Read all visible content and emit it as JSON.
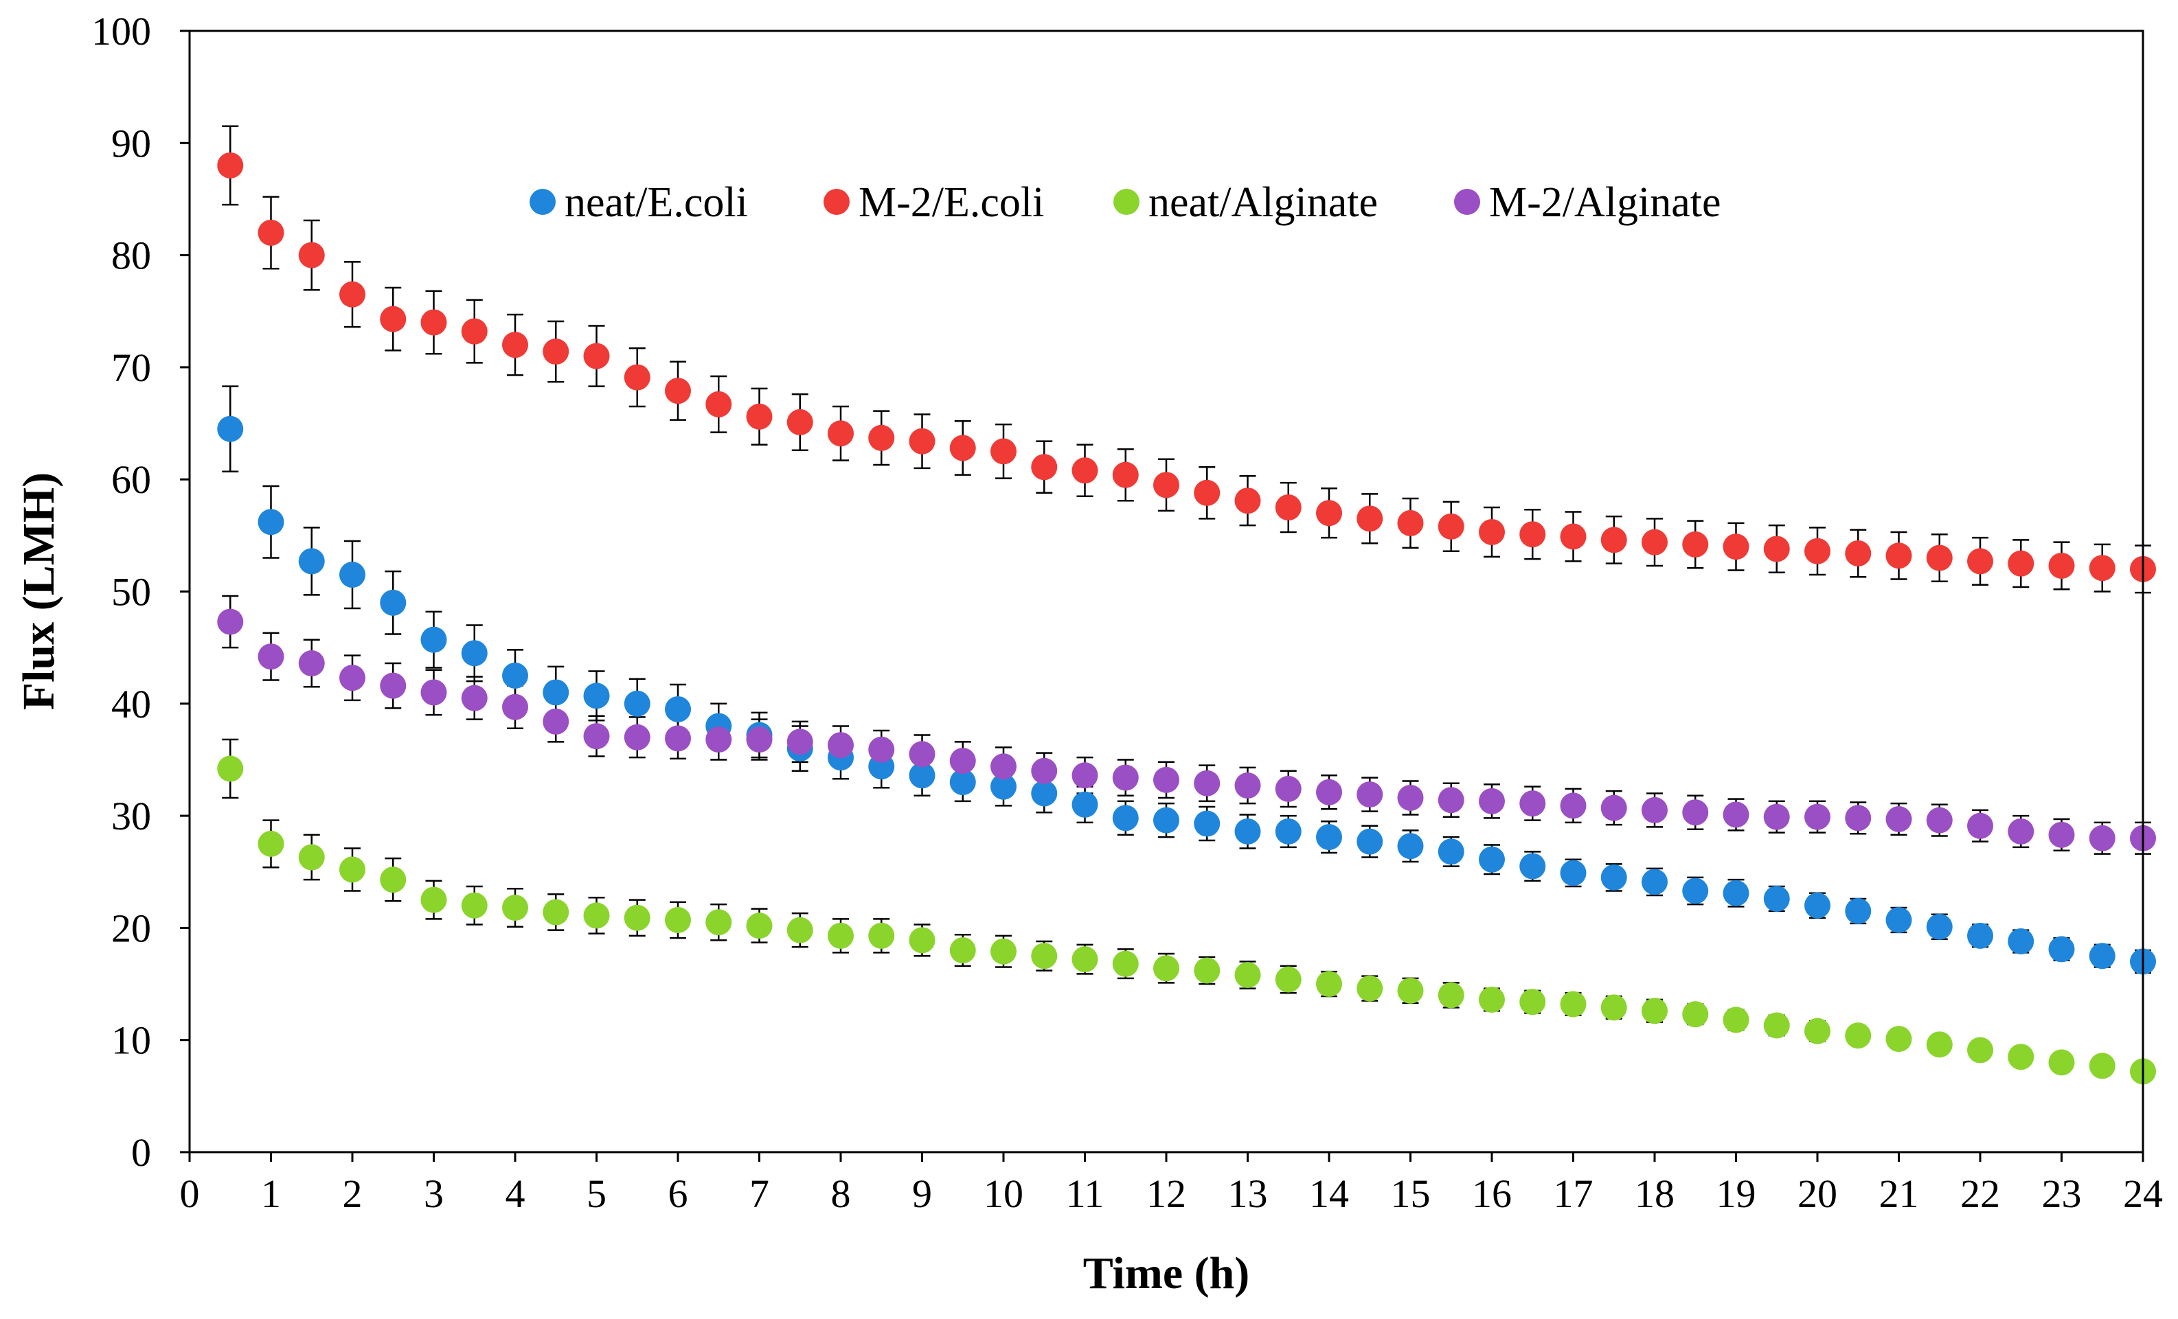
{
  "chart_data": {
    "type": "scatter",
    "title": "",
    "xlabel": "Time (h)",
    "ylabel": "Flux (LMH)",
    "xlim": [
      0,
      24
    ],
    "ylim": [
      0,
      100
    ],
    "x_ticks": [
      "0",
      "1",
      "2",
      "3",
      "4",
      "5",
      "6",
      "7",
      "8",
      "9",
      "10",
      "11",
      "12",
      "13",
      "14",
      "15",
      "16",
      "17",
      "18",
      "19",
      "20",
      "21",
      "22",
      "23",
      "24"
    ],
    "y_ticks": [
      "0",
      "10",
      "20",
      "30",
      "40",
      "50",
      "60",
      "70",
      "80",
      "90",
      "100"
    ],
    "grid": false,
    "legend_position": "top-center",
    "x": [
      0.5,
      1,
      1.5,
      2,
      2.5,
      3,
      3.5,
      4,
      4.5,
      5,
      5.5,
      6,
      6.5,
      7,
      7.5,
      8,
      8.5,
      9,
      9.5,
      10,
      10.5,
      11,
      11.5,
      12,
      12.5,
      13,
      13.5,
      14,
      14.5,
      15,
      15.5,
      16,
      16.5,
      17,
      17.5,
      18,
      18.5,
      19,
      19.5,
      20,
      20.5,
      21,
      21.5,
      22,
      22.5,
      23,
      23.5,
      24
    ],
    "series": [
      {
        "name": "neat/E.coli",
        "color": "#1f86dc",
        "values": [
          64.5,
          56.2,
          52.7,
          51.5,
          49.0,
          45.7,
          44.5,
          42.5,
          41.0,
          40.7,
          40.0,
          39.5,
          38.0,
          37.2,
          36.0,
          35.2,
          34.4,
          33.6,
          33.0,
          32.6,
          32.0,
          31.0,
          29.8,
          29.6,
          29.3,
          28.6,
          28.6,
          28.1,
          27.7,
          27.3,
          26.8,
          26.1,
          25.5,
          24.9,
          24.5,
          24.1,
          23.3,
          23.1,
          22.6,
          22.0,
          21.5,
          20.7,
          20.1,
          19.3,
          18.8,
          18.1,
          17.5,
          17.0
        ],
        "errors": [
          3.8,
          3.2,
          3.0,
          3.0,
          2.8,
          2.5,
          2.5,
          2.3,
          2.3,
          2.2,
          2.2,
          2.2,
          2.0,
          2.0,
          2.0,
          1.9,
          1.9,
          1.8,
          1.7,
          1.7,
          1.7,
          1.6,
          1.5,
          1.5,
          1.5,
          1.5,
          1.4,
          1.4,
          1.4,
          1.4,
          1.3,
          1.3,
          1.3,
          1.2,
          1.2,
          1.2,
          1.2,
          1.2,
          1.1,
          1.1,
          1.1,
          1.1,
          1.1,
          1.0,
          1.0,
          1.0,
          1.0,
          1.0
        ]
      },
      {
        "name": "M-2/E.coli",
        "color": "#ef3a36",
        "values": [
          88.0,
          82.0,
          80.0,
          76.5,
          74.3,
          74.0,
          73.2,
          72.0,
          71.4,
          71.0,
          69.1,
          67.9,
          66.7,
          65.6,
          65.1,
          64.1,
          63.7,
          63.4,
          62.8,
          62.5,
          61.1,
          60.8,
          60.4,
          59.5,
          58.8,
          58.1,
          57.5,
          57.0,
          56.5,
          56.1,
          55.8,
          55.3,
          55.1,
          54.9,
          54.6,
          54.4,
          54.2,
          54.0,
          53.8,
          53.6,
          53.4,
          53.2,
          53.0,
          52.7,
          52.5,
          52.3,
          52.1,
          52.0
        ],
        "errors": [
          3.5,
          3.2,
          3.1,
          2.9,
          2.8,
          2.8,
          2.8,
          2.7,
          2.7,
          2.7,
          2.6,
          2.6,
          2.5,
          2.5,
          2.5,
          2.4,
          2.4,
          2.4,
          2.4,
          2.4,
          2.3,
          2.3,
          2.3,
          2.3,
          2.3,
          2.2,
          2.2,
          2.2,
          2.2,
          2.2,
          2.2,
          2.2,
          2.2,
          2.2,
          2.1,
          2.1,
          2.1,
          2.1,
          2.1,
          2.1,
          2.1,
          2.1,
          2.1,
          2.1,
          2.1,
          2.1,
          2.1,
          2.1
        ]
      },
      {
        "name": "neat/Alginate",
        "color": "#8ad42c",
        "values": [
          34.2,
          27.5,
          26.3,
          25.2,
          24.3,
          22.5,
          22.0,
          21.8,
          21.4,
          21.1,
          20.9,
          20.7,
          20.5,
          20.2,
          19.8,
          19.3,
          19.3,
          18.9,
          18.0,
          17.9,
          17.5,
          17.2,
          16.8,
          16.4,
          16.2,
          15.8,
          15.4,
          15.0,
          14.6,
          14.4,
          14.0,
          13.6,
          13.4,
          13.2,
          12.9,
          12.6,
          12.3,
          11.8,
          11.3,
          10.8,
          10.4,
          10.1,
          9.6,
          9.1,
          8.5,
          8.0,
          7.7,
          7.2
        ],
        "errors": [
          2.6,
          2.1,
          2.0,
          1.9,
          1.9,
          1.7,
          1.7,
          1.7,
          1.6,
          1.6,
          1.6,
          1.6,
          1.6,
          1.5,
          1.5,
          1.5,
          1.5,
          1.4,
          1.4,
          1.4,
          1.3,
          1.3,
          1.3,
          1.3,
          1.2,
          1.2,
          1.2,
          1.1,
          1.1,
          1.1,
          1.1,
          1.0,
          1.0,
          1.0,
          1.0,
          1.0,
          0.9,
          0.9,
          0.9,
          0.9,
          0.8,
          0.8,
          0.8,
          0.8,
          0.7,
          0.7,
          0.7,
          0.7
        ]
      },
      {
        "name": "M-2/Alginate",
        "color": "#9b4fc4",
        "values": [
          47.3,
          44.2,
          43.6,
          42.3,
          41.6,
          41.0,
          40.5,
          39.7,
          38.4,
          37.1,
          37.0,
          36.9,
          36.8,
          36.8,
          36.6,
          36.3,
          35.9,
          35.5,
          34.9,
          34.4,
          34.0,
          33.6,
          33.4,
          33.2,
          32.9,
          32.7,
          32.4,
          32.1,
          31.9,
          31.6,
          31.4,
          31.3,
          31.1,
          30.9,
          30.7,
          30.5,
          30.3,
          30.1,
          29.9,
          29.9,
          29.8,
          29.7,
          29.6,
          29.1,
          28.6,
          28.3,
          28.0,
          28.0
        ],
        "errors": [
          2.3,
          2.1,
          2.1,
          2.0,
          2.0,
          2.0,
          1.9,
          1.9,
          1.8,
          1.8,
          1.8,
          1.8,
          1.8,
          1.8,
          1.8,
          1.7,
          1.7,
          1.7,
          1.7,
          1.7,
          1.6,
          1.6,
          1.6,
          1.6,
          1.6,
          1.6,
          1.6,
          1.5,
          1.5,
          1.5,
          1.5,
          1.5,
          1.5,
          1.5,
          1.5,
          1.5,
          1.5,
          1.4,
          1.4,
          1.4,
          1.4,
          1.4,
          1.4,
          1.4,
          1.4,
          1.4,
          1.4,
          1.4
        ]
      }
    ]
  }
}
